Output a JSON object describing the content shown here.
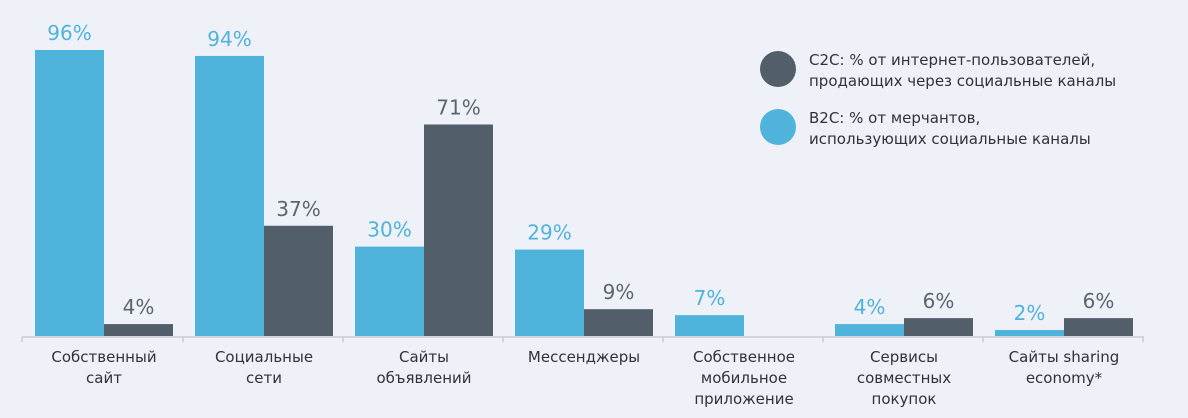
{
  "chart_data": {
    "type": "bar",
    "categories": [
      [
        "Собственный",
        "сайт"
      ],
      [
        "Социальные",
        "сети"
      ],
      [
        "Сайты",
        "объявлений"
      ],
      [
        "Мессенджеры"
      ],
      [
        "Собственное",
        "мобильное",
        "приложение"
      ],
      [
        "Сервисы",
        "совместных",
        "покупок"
      ],
      [
        "Сайты sharing",
        "economy*"
      ]
    ],
    "series": [
      {
        "name": "B2C: % от мерчантов, использующих социальные каналы",
        "legend_lines": [
          "B2C: % от мерчантов,",
          "использующих социальные каналы"
        ],
        "color": "#4fb3db",
        "values": [
          96,
          94,
          30,
          29,
          7,
          4,
          2
        ]
      },
      {
        "name": "C2C: % от интернет-пользователей, продающих через социальные каналы",
        "legend_lines": [
          "C2C: % от интернет-пользователей,",
          "продающих через социальные каналы"
        ],
        "color": "#525e69",
        "values": [
          4,
          37,
          71,
          9,
          null,
          6,
          6
        ]
      }
    ],
    "value_suffix": "%",
    "ylim": [
      0,
      100
    ],
    "grid": false,
    "legend_placement": "top-right"
  }
}
